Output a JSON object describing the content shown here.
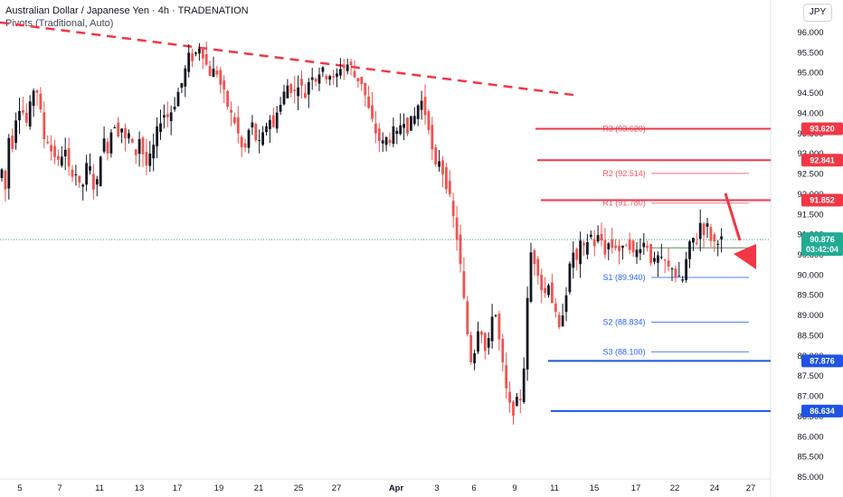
{
  "header": {
    "title": "Australian Dollar / Japanese Yen · 4h · TRADENATION",
    "indicator": "Pivots (Traditional, Auto)"
  },
  "currency_button": "JPY",
  "colors": {
    "up": "#26a69a",
    "down": "#ef5350",
    "candle": "#131722",
    "resistance": "#f23645",
    "support": "#1e53e5",
    "current": "#22ab94",
    "trendline": "#f23645"
  },
  "chart_data": {
    "type": "candlestick",
    "symbol": "AUDJPY",
    "ylim": [
      85.0,
      96.4
    ],
    "y_ticks": [
      "96.000",
      "95.500",
      "95.000",
      "94.500",
      "94.000",
      "93.500",
      "93.000",
      "92.500",
      "92.000",
      "91.500",
      "91.000",
      "90.500",
      "90.000",
      "89.500",
      "89.000",
      "88.500",
      "88.000",
      "87.500",
      "87.000",
      "86.500",
      "86.000",
      "85.500",
      "85.000"
    ],
    "x_ticks": [
      "5",
      "7",
      "11",
      "13",
      "17",
      "19",
      "21",
      "25",
      "27",
      "Apr",
      "3",
      "6",
      "9",
      "11",
      "15",
      "17",
      "22",
      "24",
      "27"
    ],
    "current_price": {
      "value": "90.876",
      "countdown": "03:42:04"
    },
    "key_levels": [
      {
        "value": "93.620",
        "role": "resistance"
      },
      {
        "value": "92.841",
        "role": "resistance"
      },
      {
        "value": "91.852",
        "role": "resistance"
      },
      {
        "value": "87.876",
        "role": "support"
      },
      {
        "value": "86.634",
        "role": "support"
      }
    ],
    "pivots": [
      {
        "label": "R3 (93.620)",
        "value": 93.62,
        "type": "r"
      },
      {
        "label": "R2 (92.514)",
        "value": 92.514,
        "type": "r"
      },
      {
        "label": "R1 (91.780)",
        "value": 91.78,
        "type": "r"
      },
      {
        "label": "S1 (89.940)",
        "value": 89.94,
        "type": "s"
      },
      {
        "label": "S2 (88.834)",
        "value": 88.834,
        "type": "s"
      },
      {
        "label": "S3 (88.100)",
        "value": 88.1,
        "type": "s"
      }
    ],
    "pivot_point": 90.674,
    "trendline": {
      "start": 96.25,
      "end": 94.45
    },
    "price_path": [
      [
        0,
        92.4
      ],
      [
        4,
        92.6
      ],
      [
        8,
        92.1
      ],
      [
        12,
        93.5
      ],
      [
        16,
        93.2
      ],
      [
        20,
        94.0
      ],
      [
        24,
        94.2
      ],
      [
        28,
        94.0
      ],
      [
        32,
        93.7
      ],
      [
        36,
        94.3
      ],
      [
        40,
        94.7
      ],
      [
        44,
        94.5
      ],
      [
        48,
        93.8
      ],
      [
        52,
        93.2
      ],
      [
        56,
        93.4
      ],
      [
        60,
        92.9
      ],
      [
        64,
        93.0
      ],
      [
        68,
        92.6
      ],
      [
        72,
        93.3
      ],
      [
        76,
        92.8
      ],
      [
        80,
        92.4
      ],
      [
        84,
        92.7
      ],
      [
        88,
        92.3
      ],
      [
        92,
        92.0
      ],
      [
        96,
        92.6
      ],
      [
        100,
        92.8
      ],
      [
        104,
        92.3
      ],
      [
        108,
        92.0
      ],
      [
        112,
        92.9
      ],
      [
        116,
        93.4
      ],
      [
        120,
        93.0
      ],
      [
        124,
        93.5
      ],
      [
        128,
        93.8
      ],
      [
        132,
        93.5
      ],
      [
        136,
        93.7
      ],
      [
        140,
        93.3
      ],
      [
        144,
        93.5
      ],
      [
        148,
        93.2
      ],
      [
        152,
        93.0
      ],
      [
        156,
        93.4
      ],
      [
        160,
        93.0
      ],
      [
        164,
        92.7
      ],
      [
        168,
        92.9
      ],
      [
        172,
        93.2
      ],
      [
        176,
        93.6
      ],
      [
        180,
        93.9
      ],
      [
        184,
        94.0
      ],
      [
        188,
        93.9
      ],
      [
        192,
        94.1
      ],
      [
        196,
        94.3
      ],
      [
        200,
        94.6
      ],
      [
        204,
        94.8
      ],
      [
        208,
        95.2
      ],
      [
        212,
        95.5
      ],
      [
        216,
        95.3
      ],
      [
        220,
        95.6
      ],
      [
        224,
        95.7
      ],
      [
        228,
        95.3
      ],
      [
        232,
        95.1
      ],
      [
        236,
        94.9
      ],
      [
        240,
        95.2
      ],
      [
        244,
        94.8
      ],
      [
        248,
        94.6
      ],
      [
        252,
        94.3
      ],
      [
        256,
        94.0
      ],
      [
        260,
        93.9
      ],
      [
        264,
        93.6
      ],
      [
        268,
        93.2
      ],
      [
        272,
        93.0
      ],
      [
        276,
        93.5
      ],
      [
        280,
        93.8
      ],
      [
        284,
        93.4
      ],
      [
        288,
        93.2
      ],
      [
        292,
        93.4
      ],
      [
        296,
        93.7
      ],
      [
        300,
        93.9
      ],
      [
        304,
        93.6
      ],
      [
        308,
        94.1
      ],
      [
        312,
        94.2
      ],
      [
        316,
        94.5
      ],
      [
        320,
        94.7
      ],
      [
        324,
        94.6
      ],
      [
        328,
        94.5
      ],
      [
        332,
        94.8
      ],
      [
        336,
        94.6
      ],
      [
        340,
        94.4
      ],
      [
        344,
        94.9
      ],
      [
        348,
        95.0
      ],
      [
        352,
        94.8
      ],
      [
        356,
        95.1
      ],
      [
        360,
        95.0
      ],
      [
        364,
        94.9
      ],
      [
        368,
        95.0
      ],
      [
        372,
        94.7
      ],
      [
        376,
        95.1
      ],
      [
        380,
        95.2
      ],
      [
        384,
        95.1
      ],
      [
        388,
        95.3
      ],
      [
        392,
        95.0
      ],
      [
        396,
        94.8
      ],
      [
        400,
        94.9
      ],
      [
        404,
        94.6
      ],
      [
        408,
        94.2
      ],
      [
        412,
        93.9
      ],
      [
        416,
        93.6
      ],
      [
        420,
        93.4
      ],
      [
        424,
        93.2
      ],
      [
        428,
        93.4
      ],
      [
        432,
        93.3
      ],
      [
        436,
        93.6
      ],
      [
        440,
        93.4
      ],
      [
        444,
        93.7
      ],
      [
        448,
        93.9
      ],
      [
        452,
        93.6
      ],
      [
        456,
        93.8
      ],
      [
        460,
        93.9
      ],
      [
        464,
        94.2
      ],
      [
        468,
        94.3
      ],
      [
        472,
        94.0
      ],
      [
        476,
        93.7
      ],
      [
        480,
        93.0
      ],
      [
        484,
        92.6
      ],
      [
        488,
        92.9
      ],
      [
        492,
        92.5
      ],
      [
        496,
        92.2
      ],
      [
        500,
        91.8
      ],
      [
        504,
        91.3
      ],
      [
        508,
        90.8
      ],
      [
        512,
        90.0
      ],
      [
        516,
        89.1
      ],
      [
        520,
        88.3
      ],
      [
        524,
        87.7
      ],
      [
        528,
        88.4
      ],
      [
        532,
        88.9
      ],
      [
        536,
        88.4
      ],
      [
        540,
        87.9
      ],
      [
        544,
        88.7
      ],
      [
        548,
        89.4
      ],
      [
        552,
        88.6
      ],
      [
        556,
        88.1
      ],
      [
        560,
        87.3
      ],
      [
        564,
        86.9
      ],
      [
        568,
        86.5
      ],
      [
        572,
        86.9
      ],
      [
        576,
        86.8
      ],
      [
        580,
        87.3
      ],
      [
        584,
        88.9
      ],
      [
        588,
        90.6
      ],
      [
        592,
        90.4
      ],
      [
        596,
        90.2
      ],
      [
        600,
        89.7
      ],
      [
        604,
        89.5
      ],
      [
        608,
        89.9
      ],
      [
        612,
        89.4
      ],
      [
        616,
        89.0
      ],
      [
        620,
        88.6
      ],
      [
        624,
        89.1
      ],
      [
        628,
        89.6
      ],
      [
        632,
        90.2
      ],
      [
        636,
        90.6
      ],
      [
        640,
        90.3
      ],
      [
        644,
        90.8
      ],
      [
        648,
        90.6
      ],
      [
        652,
        90.9
      ],
      [
        656,
        91.0
      ],
      [
        660,
        90.7
      ],
      [
        664,
        91.0
      ],
      [
        668,
        90.8
      ],
      [
        672,
        90.5
      ],
      [
        676,
        90.9
      ],
      [
        680,
        90.6
      ],
      [
        684,
        90.8
      ],
      [
        688,
        90.5
      ],
      [
        692,
        90.7
      ],
      [
        696,
        90.9
      ],
      [
        700,
        90.6
      ],
      [
        704,
        90.4
      ],
      [
        708,
        90.8
      ],
      [
        712,
        90.7
      ],
      [
        716,
        90.9
      ],
      [
        720,
        90.5
      ],
      [
        724,
        90.2
      ],
      [
        728,
        90.5
      ],
      [
        732,
        90.3
      ],
      [
        736,
        90.4
      ],
      [
        740,
        90.1
      ],
      [
        744,
        90.3
      ],
      [
        748,
        90.0
      ],
      [
        752,
        89.9
      ],
      [
        756,
        89.8
      ],
      [
        760,
        90.3
      ],
      [
        764,
        90.7
      ],
      [
        768,
        90.9
      ],
      [
        772,
        90.8
      ],
      [
        776,
        91.3
      ],
      [
        780,
        91.1
      ],
      [
        784,
        91.2
      ],
      [
        788,
        90.9
      ],
      [
        792,
        90.8
      ],
      [
        796,
        90.9
      ],
      [
        800,
        90.876
      ]
    ]
  }
}
